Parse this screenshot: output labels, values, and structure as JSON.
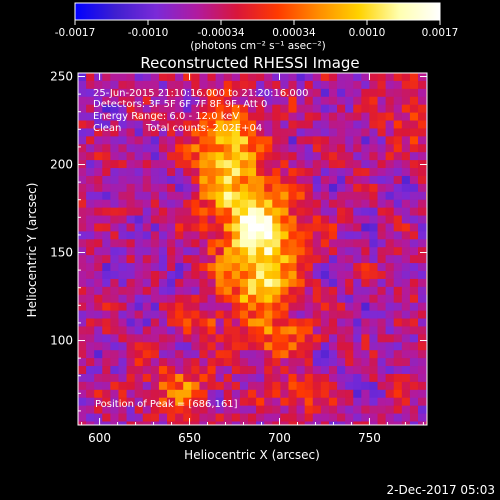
{
  "colorbar": {
    "ticks": [
      "-0.0017",
      "-0.0010",
      "-0.00034",
      "0.00034",
      "0.0010",
      "0.0017"
    ],
    "range": [
      -0.0017,
      0.0017
    ],
    "unit_label": "(photons cm⁻² s⁻¹ asec⁻²)",
    "colors": [
      "#0000ff",
      "#3f1fd0",
      "#7a2ad8",
      "#b01aa0",
      "#d9163a",
      "#ff3a00",
      "#ff8c00",
      "#ffd200",
      "#ffffb0",
      "#ffffff"
    ]
  },
  "chart_data": {
    "type": "heatmap",
    "title": "Reconstructed RHESSI Image",
    "xlabel": "Heliocentric X (arcsec)",
    "ylabel": "Heliocentric Y (arcsec)",
    "xlim": [
      588,
      782
    ],
    "ylim": [
      52,
      252
    ],
    "x_ticks": [
      600,
      650,
      700,
      750
    ],
    "y_ticks": [
      100,
      150,
      200,
      250
    ],
    "peak_position": [
      686,
      161
    ],
    "sources": [
      {
        "x": 686,
        "y": 161,
        "amplitude": 0.0017,
        "sigma_x": 16,
        "sigma_y": 22
      },
      {
        "x": 668,
        "y": 208,
        "amplitude": 0.0012,
        "sigma_x": 13,
        "sigma_y": 20
      },
      {
        "x": 688,
        "y": 130,
        "amplitude": 0.0006,
        "sigma_x": 12,
        "sigma_y": 8
      },
      {
        "x": 696,
        "y": 105,
        "amplitude": 0.0007,
        "sigma_x": 14,
        "sigma_y": 8
      },
      {
        "x": 655,
        "y": 112,
        "amplitude": 0.0005,
        "sigma_x": 8,
        "sigma_y": 7
      },
      {
        "x": 643,
        "y": 75,
        "amplitude": 0.0006,
        "sigma_x": 14,
        "sigma_y": 10
      },
      {
        "x": 706,
        "y": 72,
        "amplitude": 0.0005,
        "sigma_x": 10,
        "sigma_y": 8
      },
      {
        "x": 770,
        "y": 232,
        "amplitude": 0.0004,
        "sigma_x": 9,
        "sigma_y": 12
      }
    ],
    "background_level": -0.00055,
    "annotations": {
      "time_range": "25-Jun-2015 21:10:16.000 to 21:20:16.000",
      "detectors": "Detectors: 3F 5F 6F 7F 8F 9F, Att 0",
      "energy_range": "Energy Range: 6.0 - 12.0 keV",
      "method": "Clean",
      "total_counts": "Total counts: 2.02E+04",
      "peak_text": "Position of Peak = [686,161]"
    }
  },
  "footer": {
    "date": "2-Dec-2017 05:03"
  }
}
